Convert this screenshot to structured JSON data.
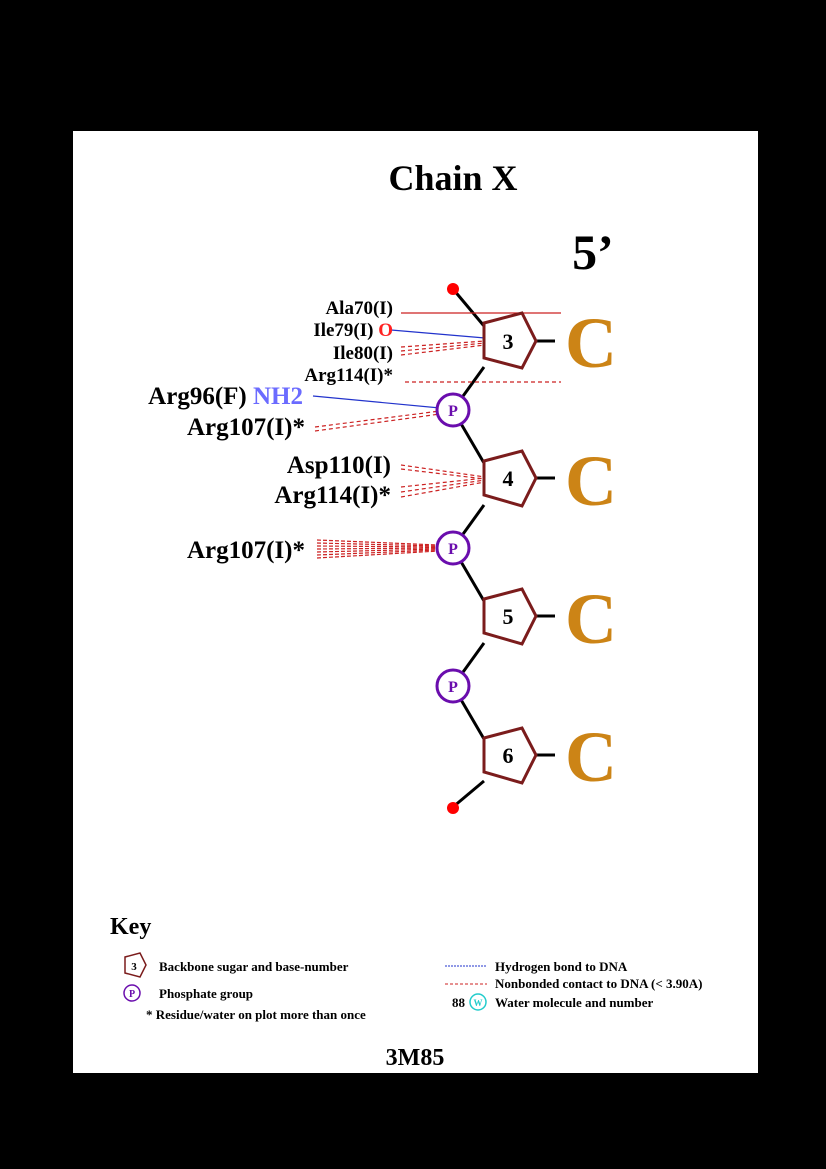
{
  "title": "Chain X",
  "strand_end": "5’",
  "pdb_id": "3M85",
  "colors": {
    "sugar": "#7b1c1c",
    "phosphate": "#6a0dad",
    "base": "#cc8416",
    "terminal": "#ff0000",
    "hbond": "#2233cc",
    "nonbonded": "#cc2222",
    "atom_o": "#ff2222",
    "atom_n": "#6b6bff",
    "water": "#22cccc"
  },
  "nucleotides": [
    {
      "number": "3",
      "base": "C"
    },
    {
      "number": "4",
      "base": "C"
    },
    {
      "number": "5",
      "base": "C"
    },
    {
      "number": "6",
      "base": "C"
    }
  ],
  "phosphate_label": "P",
  "residues": [
    {
      "id": "ala70",
      "label": "Ala70(I)",
      "atom": ""
    },
    {
      "id": "ile79",
      "label": "Ile79(I) ",
      "atom": "O"
    },
    {
      "id": "ile80",
      "label": "Ile80(I)",
      "atom": ""
    },
    {
      "id": "arg114a",
      "label": "Arg114(I)*",
      "atom": ""
    },
    {
      "id": "arg96",
      "label": "Arg96(F) ",
      "atom": "NH2"
    },
    {
      "id": "arg107a",
      "label": "Arg107(I)*",
      "atom": ""
    },
    {
      "id": "asp110",
      "label": "Asp110(I)",
      "atom": ""
    },
    {
      "id": "arg114b",
      "label": "Arg114(I)*",
      "atom": ""
    },
    {
      "id": "arg107b",
      "label": "Arg107(I)*",
      "atom": ""
    }
  ],
  "key": {
    "title": "Key",
    "sugar_icon_label": "3",
    "sugar_text": "Backbone sugar and base-number",
    "phosphate_icon_label": "P",
    "phosphate_text": "Phosphate group",
    "star_text": "* Residue/water on plot more than once",
    "hbond_text": "Hydrogen bond to DNA",
    "nonbonded_text": "Nonbonded contact to DNA (< 3.90A)",
    "water_number": "88",
    "water_icon_label": "W",
    "water_text": "Water molecule and number"
  }
}
